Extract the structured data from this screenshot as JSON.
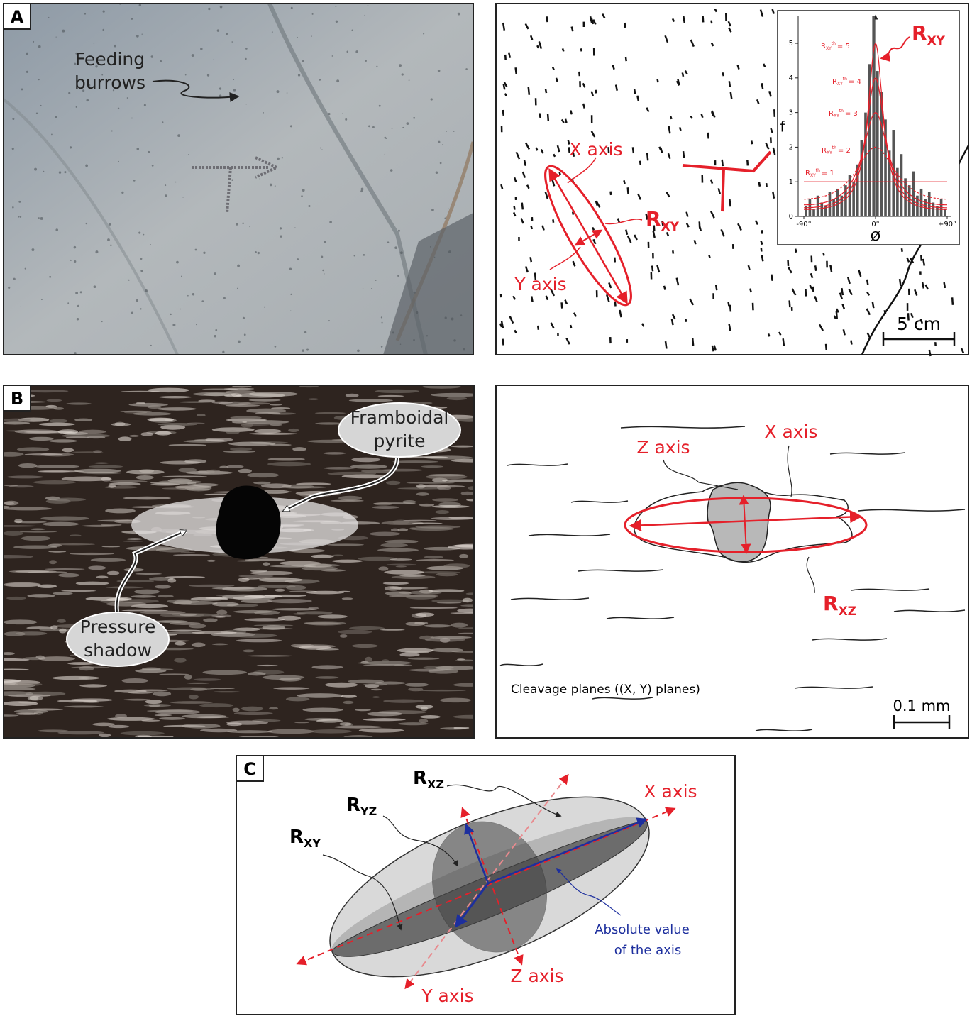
{
  "panel_a": {
    "label": "A",
    "photo_annotation": [
      "Feeding",
      "burrows"
    ],
    "x_axis": "X axis",
    "y_axis": "Y axis",
    "ratio": {
      "main": "R",
      "sub": "XY"
    },
    "scale": "5 cm"
  },
  "chart_data": {
    "type": "histogram",
    "y_label": "f",
    "x_label": "Ø",
    "bins": [
      -90,
      -85,
      -80,
      -75,
      -70,
      -65,
      -60,
      -55,
      -50,
      -45,
      -40,
      -35,
      -30,
      -25,
      -20,
      -15,
      -10,
      -5,
      0,
      5,
      10,
      15,
      20,
      25,
      30,
      35,
      40,
      45,
      50,
      55,
      60,
      65,
      70,
      75,
      80,
      85,
      90
    ],
    "counts": [
      0.3,
      0.5,
      0.2,
      0.6,
      0.4,
      0.3,
      0.7,
      0.5,
      0.8,
      0.6,
      0.9,
      1.2,
      1.0,
      1.5,
      2.2,
      3.0,
      4.4,
      5.8,
      4.2,
      3.6,
      2.8,
      1.9,
      2.5,
      1.4,
      1.8,
      1.1,
      0.9,
      1.3,
      0.6,
      0.8,
      0.5,
      0.7,
      0.4,
      0.3,
      0.5,
      0.2
    ],
    "color": "#555555",
    "xlim": [
      -90,
      90
    ],
    "xticks": [
      {
        "value": -90,
        "label": "-90°"
      },
      {
        "value": 0,
        "label": "0°"
      },
      {
        "value": 90,
        "label": "+90°"
      }
    ],
    "ylim": [
      0,
      5.8
    ],
    "yticks": [
      0,
      1,
      2,
      3,
      4,
      5
    ],
    "curve_color": "#e5202a",
    "curve_symbol": {
      "main": "R",
      "sub": "XY",
      "sup": "th"
    },
    "curves": [
      {
        "r": 5,
        "label": "= 5"
      },
      {
        "r": 4,
        "label": "= 4"
      },
      {
        "r": 3,
        "label": "= 3"
      },
      {
        "r": 2,
        "label": "= 2"
      },
      {
        "r": 1,
        "label": "= 1"
      }
    ]
  },
  "panel_b": {
    "label": "B",
    "pyrite": [
      "Framboidal",
      "pyrite"
    ],
    "shadow": [
      "Pressure",
      "shadow"
    ],
    "z_axis": "Z axis",
    "x_axis": "X axis",
    "ratio": {
      "main": "R",
      "sub": "XZ"
    },
    "cleavage": "Cleavage planes ((X, Y) planes)",
    "scale": "0.1 mm"
  },
  "panel_c": {
    "label": "C",
    "r_xz": {
      "main": "R",
      "sub": "XZ"
    },
    "r_yz": {
      "main": "R",
      "sub": "YZ"
    },
    "r_xy": {
      "main": "R",
      "sub": "XY"
    },
    "x_axis": "X axis",
    "z_axis": "Z axis",
    "y_axis": "Y axis",
    "absolute": [
      "Absolute value",
      "of the axis"
    ]
  }
}
